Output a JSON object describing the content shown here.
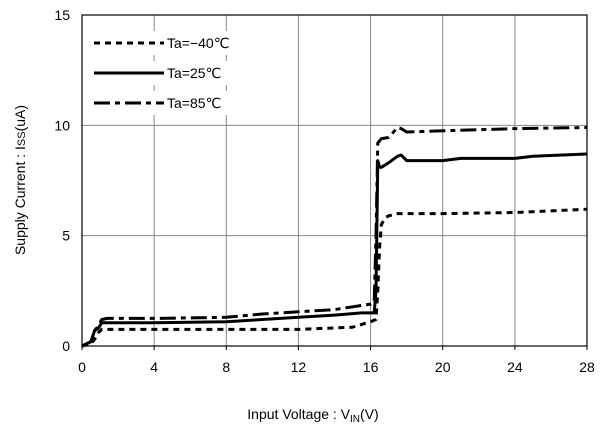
{
  "chart_data": {
    "type": "line",
    "title": "",
    "xlabel": {
      "main": "Input Voltage : V",
      "sub": "IN",
      "tail": "(V)"
    },
    "ylabel": {
      "main": "Supply Current : I",
      "sub": "SS",
      "tail": "(uA)"
    },
    "xlim": [
      0,
      28
    ],
    "ylim": [
      0,
      15
    ],
    "xticks": [
      0,
      4,
      8,
      12,
      16,
      20,
      24,
      28
    ],
    "yticks": [
      0,
      5,
      10,
      15
    ],
    "grid": true,
    "legend_position": "top-left",
    "series": [
      {
        "name": "Ta=−40℃",
        "dash": "short-dash",
        "x": [
          0,
          0.5,
          0.7,
          0.9,
          1.1,
          1.4,
          4,
          8,
          12,
          15,
          16.0,
          16.3,
          16.4,
          16.5,
          16.6,
          16.8,
          17.0,
          17.5,
          20,
          24,
          28
        ],
        "y": [
          0,
          0.1,
          0.3,
          0.6,
          0.75,
          0.75,
          0.75,
          0.75,
          0.75,
          0.85,
          1.1,
          1.2,
          2.5,
          4.5,
          5.5,
          5.8,
          5.9,
          6.0,
          6.0,
          6.05,
          6.2
        ]
      },
      {
        "name": "Ta=25℃",
        "dash": "solid",
        "x": [
          0,
          0.5,
          0.7,
          0.9,
          1.1,
          1.4,
          4,
          8,
          10,
          12,
          14,
          15.5,
          16.2,
          16.3,
          16.4,
          16.5,
          16.6,
          17.0,
          17.5,
          17.7,
          18,
          20,
          21,
          24,
          25,
          28
        ],
        "y": [
          0,
          0.2,
          0.7,
          0.8,
          1.05,
          1.05,
          1.05,
          1.1,
          1.2,
          1.3,
          1.4,
          1.5,
          1.5,
          2.5,
          8.4,
          8.1,
          8.1,
          8.3,
          8.6,
          8.65,
          8.4,
          8.4,
          8.5,
          8.5,
          8.6,
          8.7
        ]
      },
      {
        "name": "Ta=85℃",
        "dash": "long-dash",
        "x": [
          0,
          0.5,
          0.7,
          0.9,
          1.1,
          1.4,
          4,
          8,
          10,
          12,
          14,
          16.0,
          16.2,
          16.3,
          16.4,
          16.5,
          16.6,
          17.0,
          17.5,
          17.7,
          18,
          20,
          24,
          28
        ],
        "y": [
          0,
          0.2,
          0.7,
          0.9,
          1.2,
          1.25,
          1.25,
          1.3,
          1.45,
          1.55,
          1.65,
          1.9,
          2.0,
          5.0,
          9.2,
          9.3,
          9.4,
          9.45,
          9.9,
          9.85,
          9.7,
          9.75,
          9.85,
          9.9
        ]
      }
    ]
  }
}
